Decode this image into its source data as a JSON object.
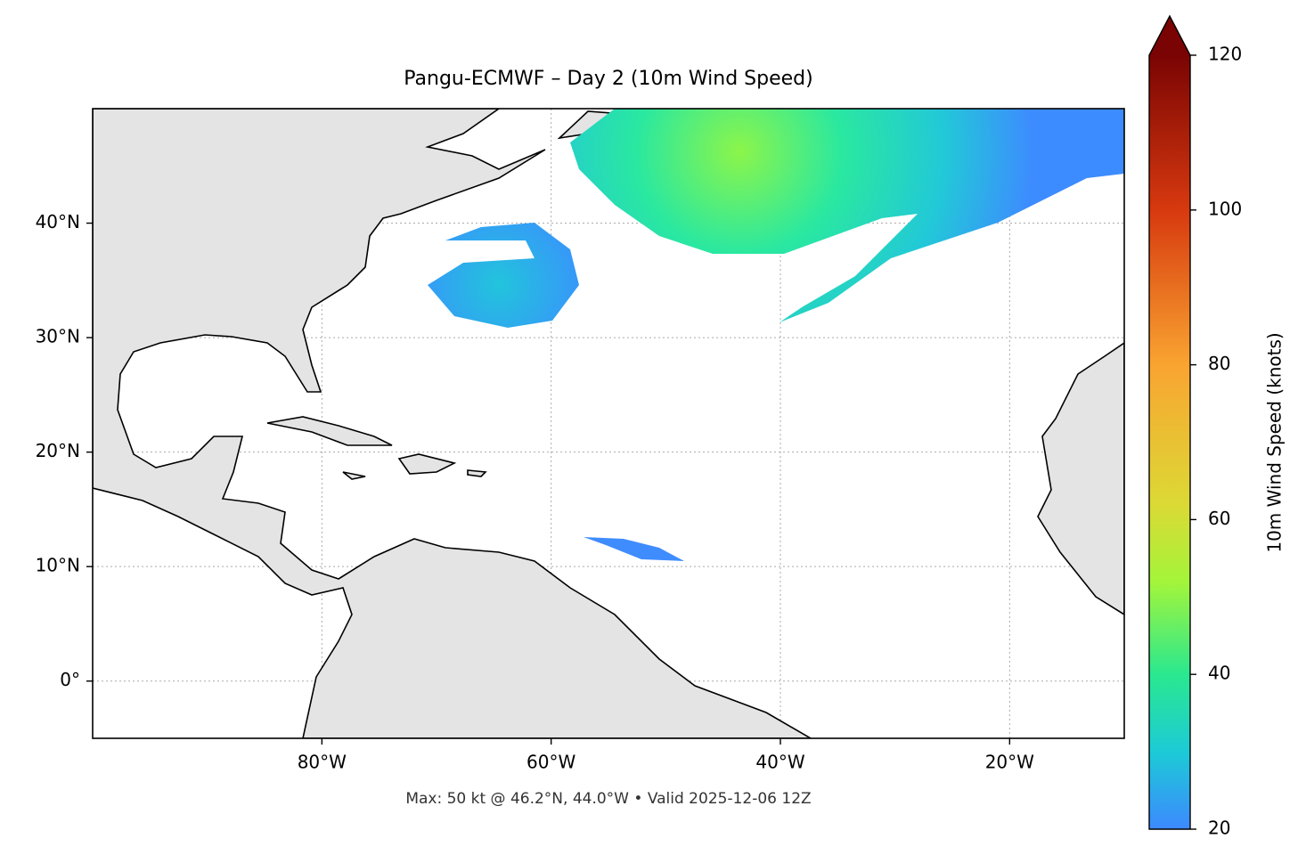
{
  "chart_data": {
    "type": "map",
    "title": "Pangu-ECMWF – Day 2 (10m Wind Speed)",
    "xlim": [
      -100,
      -10
    ],
    "ylim": [
      -5,
      50
    ],
    "xticks": [
      {
        "value": -80,
        "label": "80°W"
      },
      {
        "value": -60,
        "label": "60°W"
      },
      {
        "value": -40,
        "label": "40°W"
      },
      {
        "value": -20,
        "label": "20°W"
      }
    ],
    "yticks": [
      {
        "value": 0,
        "label": "0°"
      },
      {
        "value": 10,
        "label": "10°N"
      },
      {
        "value": 20,
        "label": "20°N"
      },
      {
        "value": 30,
        "label": "30°N"
      },
      {
        "value": 40,
        "label": "40°N"
      }
    ],
    "grid": true,
    "colorbar": {
      "label": "10m Wind Speed (knots)",
      "lim": [
        20,
        120
      ],
      "ticks": [
        20,
        40,
        60,
        80,
        100,
        120
      ],
      "extend": "max"
    },
    "caption": "Max: 50 kt @ 46.2°N, 44.0°W • Valid 2025-12-06 12Z"
  }
}
